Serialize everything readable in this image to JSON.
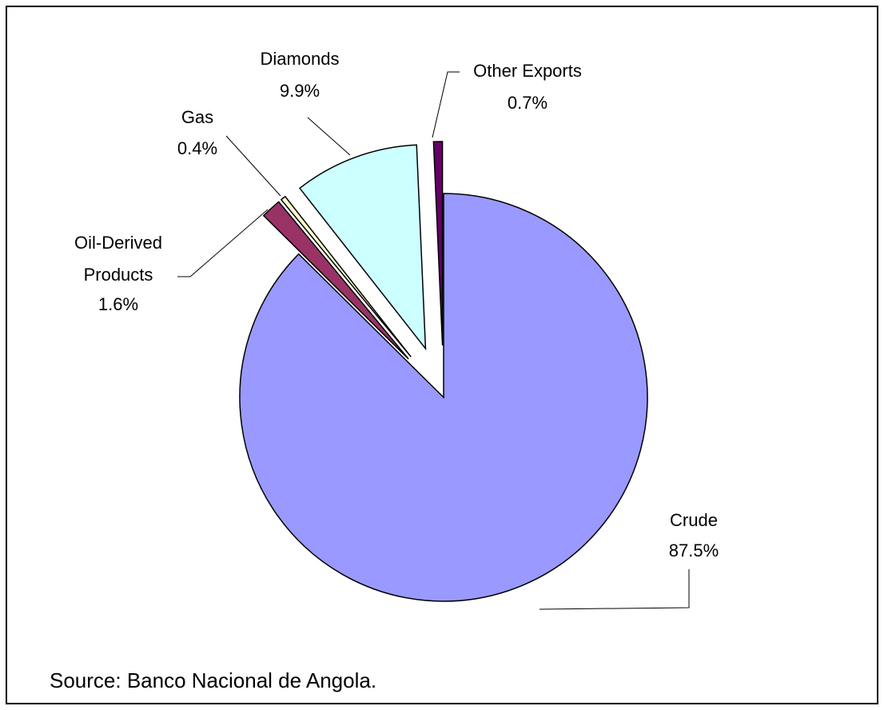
{
  "chart_data": {
    "type": "pie",
    "categories": [
      "Crude",
      "Oil-Derived Products",
      "Gas",
      "Diamonds",
      "Other Exports"
    ],
    "values": [
      87.5,
      1.6,
      0.4,
      9.9,
      0.7
    ],
    "value_labels": [
      "87.5%",
      "1.6%",
      "0.4%",
      "9.9%",
      "0.7%"
    ],
    "colors": [
      "#9999ff",
      "#993366",
      "#ffffcc",
      "#ccffff",
      "#660066"
    ],
    "source": "Source: Banco Nacional de Angola."
  }
}
